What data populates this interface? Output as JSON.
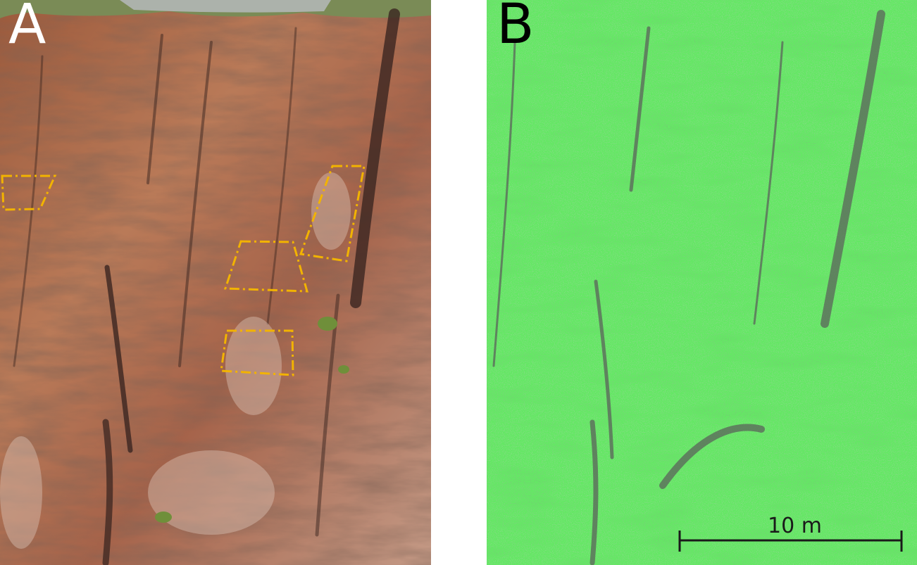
{
  "panels": [
    {
      "id": "A",
      "label": "A",
      "type": "photograph",
      "subject": "rock-cliff-face"
    },
    {
      "id": "B",
      "label": "B",
      "type": "point-cloud",
      "subject": "rock-cliff-face"
    }
  ],
  "scale_bar": {
    "label": "10 m"
  },
  "colors": {
    "rock": "#b06a48",
    "rock_dark": "#4a2e24",
    "vegetation": "#6f8f3a",
    "outline": "#f2b300",
    "point_cloud": "#22cc22",
    "point_cloud_shadow": "#555555"
  }
}
